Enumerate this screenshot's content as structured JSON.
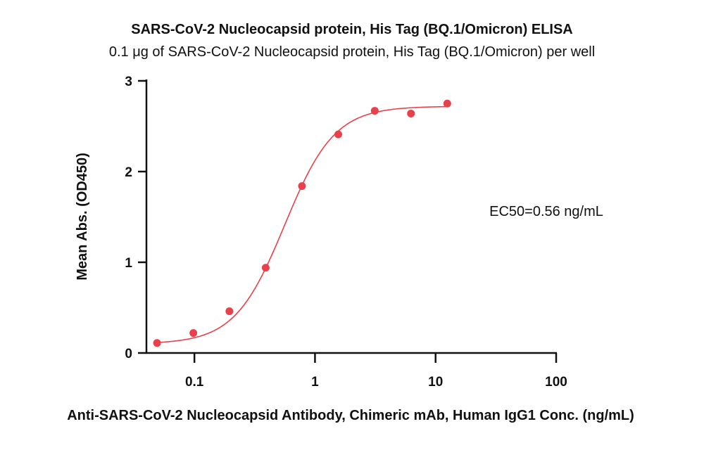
{
  "chart_data": {
    "type": "scatter",
    "title": "SARS-CoV-2 Nucleocapsid protein, His Tag (BQ.1/Omicron) ELISA",
    "subtitle": "0.1 μg of SARS-CoV-2 Nucleocapsid protein, His Tag (BQ.1/Omicron) per well",
    "xlabel": "Anti-SARS-CoV-2 Nucleocapsid Antibody, Chimeric mAb, Human IgG1 Conc. (ng/mL)",
    "ylabel": "Mean Abs. (OD450)",
    "x_scale": "log",
    "xlim": [
      0.04,
      100
    ],
    "ylim": [
      0,
      3
    ],
    "x_ticks": [
      0.1,
      1,
      10,
      100
    ],
    "x_tick_labels": [
      "0.1",
      "1",
      "10",
      "100"
    ],
    "y_ticks": [
      0,
      1,
      2,
      3
    ],
    "y_tick_labels": [
      "0",
      "1",
      "2",
      "3"
    ],
    "grid": false,
    "series": [
      {
        "color": "#e8414b",
        "x": [
          0.049,
          0.098,
          0.195,
          0.39,
          0.78,
          1.56,
          3.13,
          6.25,
          12.5
        ],
        "y": [
          0.11,
          0.22,
          0.46,
          0.94,
          1.84,
          2.41,
          2.67,
          2.64,
          2.75
        ]
      }
    ],
    "fit": {
      "model": "4PL",
      "bottom": 0.1,
      "top": 2.72,
      "ec50": 0.56,
      "hill": 2.1
    },
    "annotation": "EC50=0.56 ng/mL"
  }
}
